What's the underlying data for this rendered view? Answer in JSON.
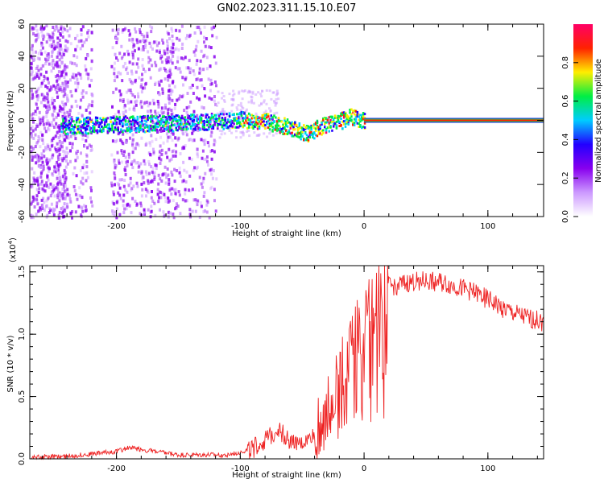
{
  "title": "GN02.2023.311.15.10.E07",
  "chart_data": [
    {
      "type": "heatmap",
      "title": "GN02.2023.311.15.10.E07",
      "xlabel": "Height of straight line (km)",
      "ylabel": "Frequency (Hz)",
      "xlim": [
        -270,
        145
      ],
      "ylim": [
        -60,
        60
      ],
      "x_ticks": [
        "-200",
        "-100",
        "0",
        "100"
      ],
      "y_ticks": [
        "-60",
        "-40",
        "-20",
        "0",
        "20",
        "40",
        "60"
      ],
      "colorbar": {
        "label": "Normalized spectral amplitude",
        "range": [
          0,
          1
        ],
        "ticks": [
          "0.0",
          "0.2",
          "0.4",
          "0.6",
          "0.8"
        ],
        "colors": [
          "#ffffff",
          "#cc99ff",
          "#8800ee",
          "#2200ff",
          "#00ccff",
          "#00ee44",
          "#ffee00",
          "#ff2200",
          "#ff0066"
        ]
      },
      "ridge": {
        "x": [
          -245,
          -200,
          -150,
          -120,
          -100,
          -80,
          -60,
          -45,
          -40,
          -30,
          -20,
          -10,
          0,
          145
        ],
        "freq_hz": [
          -3,
          -2,
          -1,
          0,
          1,
          0,
          -4,
          -8,
          -5,
          -2,
          0,
          3,
          0,
          0
        ]
      },
      "grid": false
    },
    {
      "type": "line",
      "xlabel": "Height of straight line (km)",
      "ylabel": "SNR (10 * v/v)",
      "y_scale_label": "(x10^4)",
      "y_scale_base": "(x10",
      "y_scale_exp": "4",
      "y_scale_close": ")",
      "xlim": [
        -270,
        145
      ],
      "ylim": [
        0,
        1.55
      ],
      "x_ticks": [
        "-200",
        "-100",
        "0",
        "100"
      ],
      "y_ticks": [
        "0.0",
        "0.5",
        "1.0",
        "1.5"
      ],
      "series": [
        {
          "color": "#ee2222",
          "x": [
            -270,
            -240,
            -200,
            -190,
            -150,
            -110,
            -90,
            -75,
            -70,
            -60,
            -50,
            -40,
            -35,
            -30,
            -25,
            -20,
            -15,
            -10,
            -5,
            0,
            10,
            20,
            30,
            45,
            60,
            75,
            90,
            100,
            110,
            120,
            135,
            145
          ],
          "y": [
            0.01,
            0.02,
            0.06,
            0.09,
            0.03,
            0.03,
            0.08,
            0.18,
            0.25,
            0.14,
            0.12,
            0.2,
            0.25,
            0.38,
            0.55,
            0.7,
            0.8,
            0.95,
            1.02,
            1.1,
            1.3,
            1.38,
            1.4,
            1.43,
            1.42,
            1.38,
            1.33,
            1.28,
            1.22,
            1.17,
            1.12,
            1.1
          ]
        }
      ],
      "grid": false
    }
  ]
}
